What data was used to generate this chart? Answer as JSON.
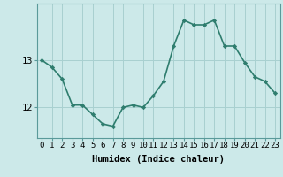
{
  "x": [
    0,
    1,
    2,
    3,
    4,
    5,
    6,
    7,
    8,
    9,
    10,
    11,
    12,
    13,
    14,
    15,
    16,
    17,
    18,
    19,
    20,
    21,
    22,
    23
  ],
  "y": [
    13.0,
    12.85,
    12.6,
    12.05,
    12.05,
    11.85,
    11.65,
    11.6,
    12.0,
    12.05,
    12.0,
    12.25,
    12.55,
    13.3,
    13.85,
    13.75,
    13.75,
    13.85,
    13.3,
    13.3,
    12.95,
    12.65,
    12.55,
    12.3
  ],
  "line_color": "#2e7d6e",
  "marker": "D",
  "marker_size": 2.2,
  "bg_color": "#cce9e9",
  "grid_color": "#a8d0d0",
  "xlabel": "Humidex (Indice chaleur)",
  "yticks": [
    12,
    13
  ],
  "ylim": [
    11.35,
    14.2
  ],
  "xlim": [
    -0.5,
    23.5
  ],
  "xlabel_fontsize": 7.5,
  "tick_fontsize": 6.5,
  "line_width": 1.2
}
